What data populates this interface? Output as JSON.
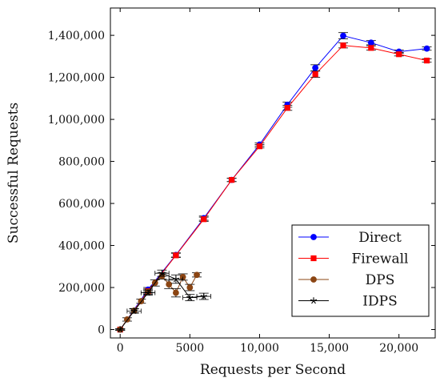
{
  "chart_data": {
    "type": "line",
    "xlabel": "Requests per Second",
    "ylabel": "Successful Requests",
    "xlim": [
      -700,
      22600
    ],
    "ylim": [
      -40000,
      1530000
    ],
    "xticks": [
      0,
      5000,
      10000,
      15000,
      20000
    ],
    "xtick_labels": [
      "0",
      "5000",
      "10,000",
      "15,000",
      "20,000"
    ],
    "yticks": [
      0,
      200000,
      400000,
      600000,
      800000,
      1000000,
      1200000,
      1400000
    ],
    "ytick_labels": [
      "0",
      "200,000",
      "400,000",
      "600,000",
      "800,000",
      "1,000,000",
      "1,200,000",
      "1,400,000"
    ],
    "grid": false,
    "legend_position": "bottom-right",
    "series": [
      {
        "name": "Direct",
        "color": "#0000ff",
        "marker": "circle",
        "x": [
          0,
          2000,
          4000,
          6000,
          8000,
          10000,
          12000,
          14000,
          16000,
          18000,
          20000,
          22000
        ],
        "y": [
          0,
          190000,
          355000,
          530000,
          712000,
          880000,
          1070000,
          1245000,
          1398000,
          1365000,
          1322000,
          1337000
        ],
        "err": [
          3000,
          10000,
          10000,
          10000,
          8000,
          8000,
          12000,
          15000,
          15000,
          10000,
          8000,
          8000
        ]
      },
      {
        "name": "Firewall",
        "color": "#ff0000",
        "marker": "square",
        "x": [
          0,
          2000,
          4000,
          6000,
          8000,
          10000,
          12000,
          14000,
          16000,
          18000,
          20000,
          22000
        ],
        "y": [
          0,
          183000,
          353000,
          525000,
          712000,
          872000,
          1055000,
          1215000,
          1352000,
          1340000,
          1310000,
          1280000
        ],
        "err": [
          3000,
          10000,
          10000,
          10000,
          8000,
          8000,
          12000,
          15000,
          12000,
          10000,
          8000,
          8000
        ]
      },
      {
        "name": "DPS",
        "color": "#8b4513",
        "marker": "circle",
        "x": [
          0,
          500,
          1000,
          1500,
          2000,
          2500,
          3000,
          3500,
          4000,
          4500,
          5000,
          5500
        ],
        "y": [
          0,
          48000,
          90000,
          135000,
          180000,
          222000,
          255000,
          215000,
          175000,
          250000,
          200000,
          260000
        ],
        "err": [
          3000,
          8000,
          10000,
          10000,
          12000,
          15000,
          15000,
          20000,
          20000,
          15000,
          15000,
          10000
        ]
      },
      {
        "name": "IDPS",
        "color": "#000000",
        "marker": "star",
        "x": [
          0,
          1000,
          2000,
          3000,
          4000,
          5000,
          6000
        ],
        "y": [
          0,
          88000,
          175000,
          268000,
          240000,
          152000,
          158000
        ],
        "err": [
          3000,
          10000,
          12000,
          15000,
          20000,
          15000,
          15000
        ],
        "xerr": [
          0,
          500,
          500,
          500,
          500,
          500,
          500
        ]
      }
    ]
  }
}
